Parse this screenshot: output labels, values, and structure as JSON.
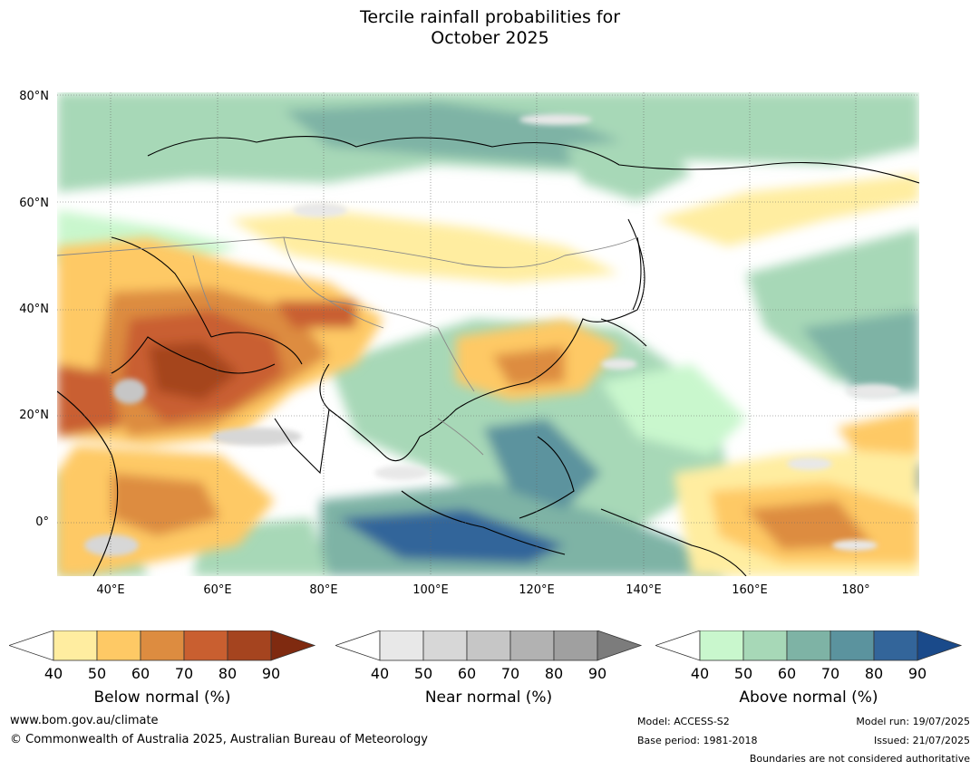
{
  "title_line1": "Tercile rainfall probabilities for",
  "title_line2": "October 2025",
  "lat_labels": [
    "80°N",
    "60°N",
    "40°N",
    "20°N",
    "0°"
  ],
  "lon_labels": [
    "40°E",
    "60°E",
    "80°E",
    "100°E",
    "120°E",
    "140°E",
    "160°E",
    "180°"
  ],
  "colorbars": {
    "below": {
      "title": "Below normal (%)",
      "ticks": [
        "40",
        "50",
        "60",
        "70",
        "80",
        "90"
      ],
      "colors": [
        "#ffeda0",
        "#fec965",
        "#dd8c40",
        "#c95f30",
        "#a5441f",
        "#7f2a10"
      ]
    },
    "near": {
      "title": "Near normal (%)",
      "ticks": [
        "40",
        "50",
        "60",
        "70",
        "80",
        "90"
      ],
      "colors": [
        "#e8e8e8",
        "#d7d7d7",
        "#c6c6c6",
        "#b2b2b2",
        "#a0a0a0",
        "#7c7c7c"
      ]
    },
    "above": {
      "title": "Above normal (%)",
      "ticks": [
        "40",
        "50",
        "60",
        "70",
        "80",
        "90"
      ],
      "colors": [
        "#c9f7cd",
        "#a7d8b7",
        "#7eb3a5",
        "#5b939e",
        "#33659a",
        "#1a4a8a"
      ]
    }
  },
  "footer": {
    "website": "www.bom.gov.au/climate",
    "copyright": "© Commonwealth of Australia 2025, Australian Bureau of Meteorology",
    "model": "Model: ACCESS-S2",
    "base_period": "Base period: 1981-2018",
    "model_run": "Model run: 19/07/2025",
    "issued": "Issued: 21/07/2025",
    "disclaimer": "Boundaries are not considered authoritative"
  }
}
